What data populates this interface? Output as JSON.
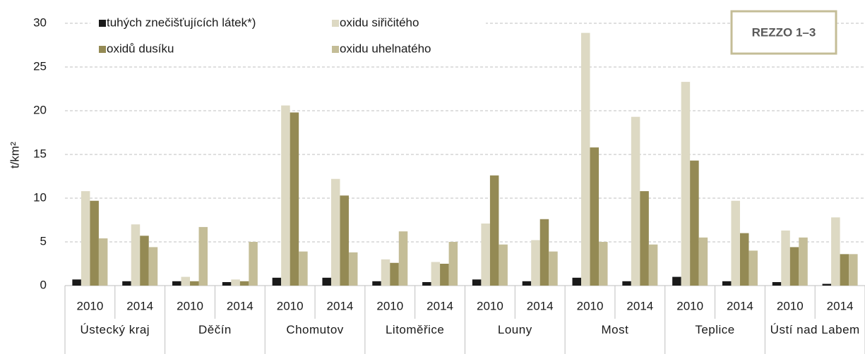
{
  "chart_data": {
    "type": "bar",
    "badge": "REZZO 1–3",
    "ylabel": "t/km²",
    "categories": [
      "2010",
      "2014",
      "2010",
      "2014",
      "2010",
      "2014",
      "2010",
      "2014",
      "2010",
      "2014",
      "2010",
      "2014",
      "2010",
      "2014",
      "2010",
      "2014"
    ],
    "groups": [
      "Ústecký kraj",
      "Děčín",
      "Chomutov",
      "Litoměřice",
      "Louny",
      "Most",
      "Teplice",
      "Ústí nad Labem"
    ],
    "series": [
      {
        "name": "tuhých znečišťujících látek*)",
        "color": "#1a1a1a",
        "values": [
          0.7,
          0.5,
          0.5,
          0.4,
          0.9,
          0.9,
          0.5,
          0.4,
          0.7,
          0.5,
          0.9,
          0.5,
          1.0,
          0.5,
          0.4,
          0.2
        ]
      },
      {
        "name": "oxidu siřičitého",
        "color": "#ddd9c3",
        "values": [
          10.8,
          7.0,
          1.0,
          0.7,
          20.6,
          12.2,
          3.0,
          2.7,
          7.1,
          5.2,
          28.9,
          19.3,
          23.3,
          9.7,
          6.3,
          7.8
        ]
      },
      {
        "name": "oxidů dusíku",
        "color": "#948a54",
        "values": [
          9.7,
          5.7,
          0.5,
          0.5,
          19.8,
          10.3,
          2.6,
          2.5,
          12.6,
          7.6,
          15.8,
          10.8,
          14.3,
          6.0,
          4.4,
          3.6
        ]
      },
      {
        "name": "oxidu uhelnatého",
        "color": "#c4bd97",
        "values": [
          5.4,
          4.4,
          6.7,
          5.0,
          3.9,
          3.8,
          6.2,
          5.0,
          4.7,
          3.9,
          5.0,
          4.7,
          5.5,
          4.0,
          5.5,
          3.6
        ]
      }
    ],
    "ylim": [
      0,
      30
    ],
    "yticks": [
      0,
      5,
      10,
      15,
      20,
      25,
      30
    ],
    "grid": true
  }
}
